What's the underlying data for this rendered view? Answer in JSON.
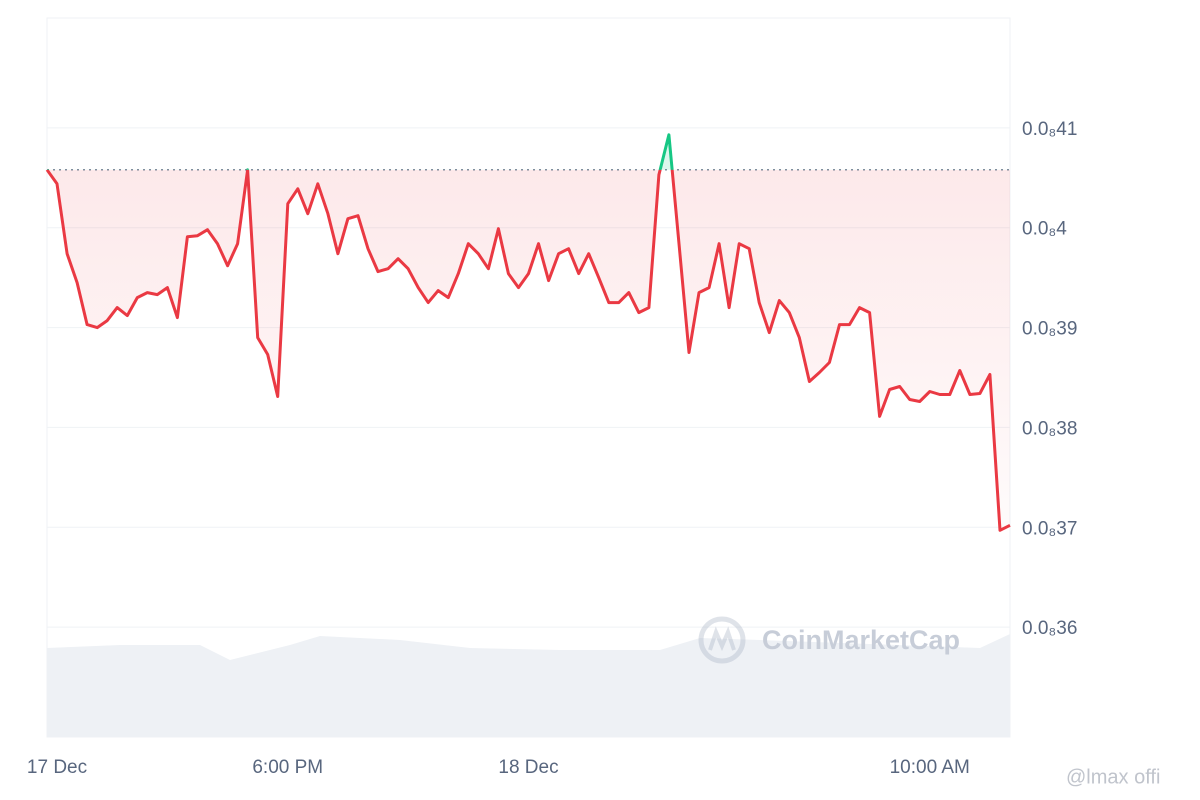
{
  "chart_data": {
    "type": "line",
    "watermark": "CoinMarketCap",
    "credit": "@lmax offi",
    "xlim": [
      0,
      96
    ],
    "xticks": [
      {
        "value": 1,
        "label": "17 Dec"
      },
      {
        "value": 24,
        "label": "6:00 PM"
      },
      {
        "value": 48,
        "label": "18 Dec"
      },
      {
        "value": 88,
        "label": "10:00 AM"
      }
    ],
    "ylim": [
      3.49e-09,
      4.21e-09
    ],
    "yticks": [
      {
        "value": 3.6e-09,
        "label": "0.0₈36"
      },
      {
        "value": 3.7e-09,
        "label": "0.0₈37"
      },
      {
        "value": 3.8e-09,
        "label": "0.0₈38"
      },
      {
        "value": 3.9e-09,
        "label": "0.0₈39"
      },
      {
        "value": 4e-09,
        "label": "0.0₈4"
      },
      {
        "value": 4.1e-09,
        "label": "0.0₈41"
      }
    ],
    "grid": true,
    "baseline": 4.058e-09,
    "color": "#ea3943",
    "up_color": "#16c784",
    "values": [
      4.058e-09,
      4.044e-09,
      3.974e-09,
      3.945e-09,
      3.903e-09,
      3.9e-09,
      3.907e-09,
      3.92e-09,
      3.912e-09,
      3.93e-09,
      3.935e-09,
      3.933e-09,
      3.94e-09,
      3.91e-09,
      3.991e-09,
      3.992e-09,
      3.998e-09,
      3.984e-09,
      3.962e-09,
      3.984e-09,
      4.058e-09,
      3.89e-09,
      3.873e-09,
      3.831e-09,
      4.024e-09,
      4.039e-09,
      4.014e-09,
      4.044e-09,
      4.014e-09,
      3.974e-09,
      4.009e-09,
      4.012e-09,
      3.979e-09,
      3.956e-09,
      3.959e-09,
      3.969e-09,
      3.959e-09,
      3.94e-09,
      3.925e-09,
      3.937e-09,
      3.93e-09,
      3.954e-09,
      3.984e-09,
      3.974e-09,
      3.959e-09,
      3.999e-09,
      3.954e-09,
      3.94e-09,
      3.954e-09,
      3.984e-09,
      3.947e-09,
      3.974e-09,
      3.979e-09,
      3.954e-09,
      3.974e-09,
      3.95e-09,
      3.925e-09,
      3.925e-09,
      3.935e-09,
      3.915e-09,
      3.92e-09,
      4.053e-09,
      4.093e-09,
      3.984e-09,
      3.875e-09,
      3.935e-09,
      3.94e-09,
      3.984e-09,
      3.92e-09,
      3.984e-09,
      3.979e-09,
      3.925e-09,
      3.895e-09,
      3.927e-09,
      3.915e-09,
      3.89e-09,
      3.846e-09,
      3.855e-09,
      3.865e-09,
      3.903e-09,
      3.903e-09,
      3.92e-09,
      3.915e-09,
      3.811e-09,
      3.838e-09,
      3.841e-09,
      3.828e-09,
      3.826e-09,
      3.836e-09,
      3.833e-09,
      3.833e-09,
      3.857e-09,
      3.833e-09,
      3.834e-09,
      3.853e-09,
      3.697e-09,
      3.702e-09
    ]
  }
}
